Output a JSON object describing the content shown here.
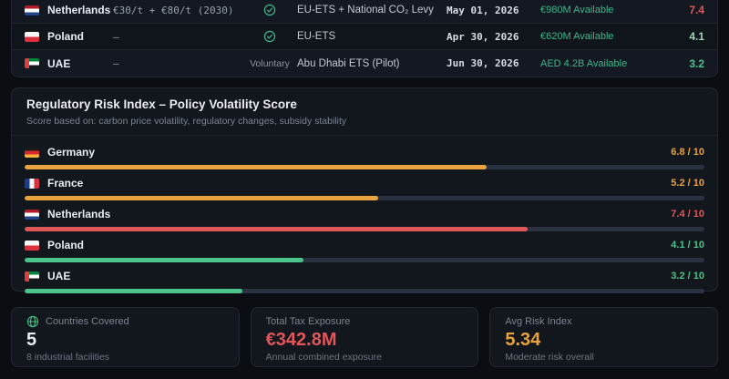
{
  "colors": {
    "green": "#4cc38a",
    "teal_text": "#3fb68b",
    "orange": "#e8a33d",
    "red": "#e0565a",
    "pale_green": "#9fd0b8",
    "white": "#e6edf3"
  },
  "compliance_table": {
    "rows": [
      {
        "country": "Netherlands",
        "flag": "nl",
        "price": "€30/t + €80/t (2030)",
        "status": "check",
        "status_label": "",
        "scheme": "EU-ETS + National CO₂ Levy",
        "deadline": "May 01, 2026",
        "available": "€980M Available",
        "score": "7.4",
        "score_color": "#e0565a"
      },
      {
        "country": "Poland",
        "flag": "pl",
        "price": "–",
        "status": "check",
        "status_label": "",
        "scheme": "EU-ETS",
        "deadline": "Apr 30, 2026",
        "available": "€620M Available",
        "score": "4.1",
        "score_color": "#9fd0b8"
      },
      {
        "country": "UAE",
        "flag": "ae",
        "price": "–",
        "status": "text",
        "status_label": "Voluntary",
        "scheme": "Abu Dhabi ETS (Pilot)",
        "deadline": "Jun 30, 2026",
        "available": "AED 4.2B Available",
        "score": "3.2",
        "score_color": "#4cc38a"
      }
    ]
  },
  "risk_panel": {
    "title": "Regulatory Risk Index – Policy Volatility Score",
    "subtitle": "Score based on: carbon price volatility, regulatory changes, subsidy stability"
  },
  "chart_data": {
    "type": "bar",
    "orientation": "horizontal",
    "title": "Regulatory Risk Index – Policy Volatility Score",
    "categories": [
      "Germany",
      "France",
      "Netherlands",
      "Poland",
      "UAE"
    ],
    "flags": [
      "de",
      "fr",
      "nl",
      "pl",
      "ae"
    ],
    "values": [
      6.8,
      5.2,
      7.4,
      4.1,
      3.2
    ],
    "value_labels": [
      "6.8 / 10",
      "5.2 / 10",
      "7.4 / 10",
      "4.1 / 10",
      "3.2 / 10"
    ],
    "bar_colors": [
      "#e8a33d",
      "#e8a33d",
      "#e0565a",
      "#4cc38a",
      "#4cc38a"
    ],
    "xlim": [
      0,
      10
    ],
    "grid": false,
    "legend": "none"
  },
  "stats": [
    {
      "icon": "globe-icon",
      "label": "Countries Covered",
      "value": "5",
      "value_color": "#e6edf3",
      "sub": "8 industrial facilities"
    },
    {
      "icon": "",
      "label": "Total Tax Exposure",
      "value": "€342.8M",
      "value_color": "#e0565a",
      "sub": "Annual combined exposure"
    },
    {
      "icon": "",
      "label": "Avg Risk Index",
      "value": "5.34",
      "value_color": "#e8a33d",
      "sub": "Moderate risk overall"
    }
  ]
}
